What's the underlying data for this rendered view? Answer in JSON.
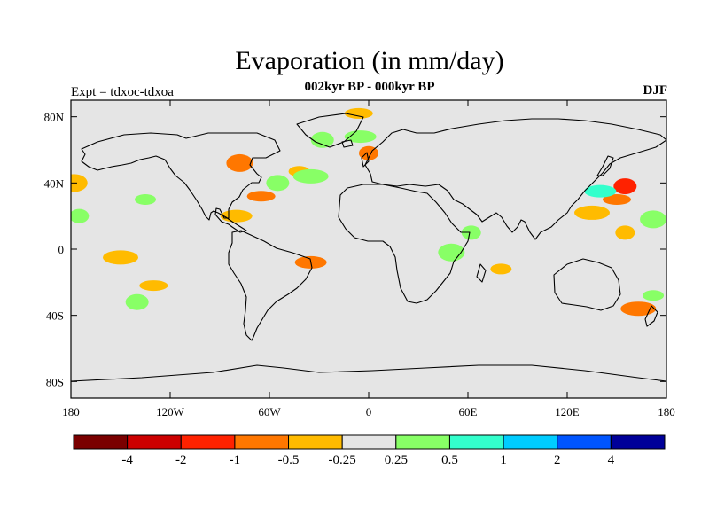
{
  "map": {
    "title": "Evaporation (in mm/day)",
    "subtitle": "002kyr BP - 000kyr BP",
    "left_label": "Expt = tdxoc-tdxoa",
    "right_label": "DJF",
    "projection": "cylindrical-equidistant",
    "lon_range": [
      -180,
      180
    ],
    "lat_range": [
      -90,
      90
    ],
    "background_color": "#e5e5e5",
    "lat_ticks": [
      {
        "value": 80,
        "label": "80N"
      },
      {
        "value": 40,
        "label": "40N"
      },
      {
        "value": 0,
        "label": "0"
      },
      {
        "value": -40,
        "label": "40S"
      },
      {
        "value": -80,
        "label": "80S"
      }
    ],
    "lon_ticks": [
      {
        "value": -180,
        "label": "180"
      },
      {
        "value": -120,
        "label": "120W"
      },
      {
        "value": -60,
        "label": "60W"
      },
      {
        "value": 0,
        "label": "0"
      },
      {
        "value": 60,
        "label": "60E"
      },
      {
        "value": 120,
        "label": "120E"
      },
      {
        "value": 180,
        "label": "180"
      }
    ]
  },
  "colorbar": {
    "colors": [
      "#7a0000",
      "#cc0000",
      "#ff2200",
      "#ff7700",
      "#ffbb00",
      "#e5e5e5",
      "#88ff66",
      "#33ffcc",
      "#00ccff",
      "#0055ff",
      "#000099"
    ],
    "labels": [
      "-4",
      "-2",
      "-1",
      "-0.5",
      "-0.25",
      "0.25",
      "0.5",
      "1",
      "2",
      "4"
    ]
  },
  "anomalies": [
    {
      "lat": 82,
      "lon": -6,
      "color": "#ffbb00",
      "class": "-0.5 to -0.25"
    },
    {
      "lat": 66,
      "lon": -28,
      "color": "#88ff66",
      "class": "0.25 to 0.5"
    },
    {
      "lat": 68,
      "lon": -5,
      "color": "#88ff66",
      "class": "0.25 to 0.5"
    },
    {
      "lat": 58,
      "lon": 0,
      "color": "#ff7700",
      "class": "-1 to -0.5"
    },
    {
      "lat": 52,
      "lon": -78,
      "color": "#ff7700",
      "class": "-1 to -0.5"
    },
    {
      "lat": 47,
      "lon": -42,
      "color": "#ffbb00",
      "class": "-0.5 to -0.25"
    },
    {
      "lat": 44,
      "lon": -35,
      "color": "#88ff66",
      "class": "0.25 to 0.5"
    },
    {
      "lat": 32,
      "lon": -65,
      "color": "#ff7700",
      "class": "-1 to -0.5"
    },
    {
      "lat": 40,
      "lon": -55,
      "color": "#88ff66",
      "class": "0.25 to 0.5"
    },
    {
      "lat": 20,
      "lon": -80,
      "color": "#ffbb00",
      "class": "-0.5 to -0.25"
    },
    {
      "lat": 20,
      "lon": -175,
      "color": "#88ff66",
      "class": "0.25 to 0.5"
    },
    {
      "lat": 40,
      "lon": -178,
      "color": "#ffbb00",
      "class": "-0.5 to -0.25"
    },
    {
      "lat": 30,
      "lon": -135,
      "color": "#88ff66",
      "class": "0.25 to 0.5"
    },
    {
      "lat": -5,
      "lon": -150,
      "color": "#ffbb00",
      "class": "-0.5 to -0.25"
    },
    {
      "lat": -22,
      "lon": -130,
      "color": "#ffbb00",
      "class": "-0.5 to -0.25"
    },
    {
      "lat": -32,
      "lon": -140,
      "color": "#88ff66",
      "class": "0.25 to 0.5"
    },
    {
      "lat": -8,
      "lon": -35,
      "color": "#ff7700",
      "class": "-1 to -0.5"
    },
    {
      "lat": 10,
      "lon": 62,
      "color": "#88ff66",
      "class": "0.25 to 0.5"
    },
    {
      "lat": -2,
      "lon": 50,
      "color": "#88ff66",
      "class": "0.25 to 0.5"
    },
    {
      "lat": -12,
      "lon": 80,
      "color": "#ffbb00",
      "class": "-0.5 to -0.25"
    },
    {
      "lat": 22,
      "lon": 135,
      "color": "#ffbb00",
      "class": "-0.5 to -0.25"
    },
    {
      "lat": 30,
      "lon": 150,
      "color": "#ff7700",
      "class": "-1 to -0.5"
    },
    {
      "lat": 38,
      "lon": 155,
      "color": "#ff2200",
      "class": "-2 to -1"
    },
    {
      "lat": 35,
      "lon": 140,
      "color": "#33ffcc",
      "class": "0.5 to 1"
    },
    {
      "lat": 10,
      "lon": 155,
      "color": "#ffbb00",
      "class": "-0.5 to -0.25"
    },
    {
      "lat": 18,
      "lon": 172,
      "color": "#88ff66",
      "class": "0.25 to 0.5"
    },
    {
      "lat": -28,
      "lon": 172,
      "color": "#88ff66",
      "class": "0.25 to 0.5"
    },
    {
      "lat": -36,
      "lon": 163,
      "color": "#ff7700",
      "class": "-1 to -0.5"
    }
  ]
}
